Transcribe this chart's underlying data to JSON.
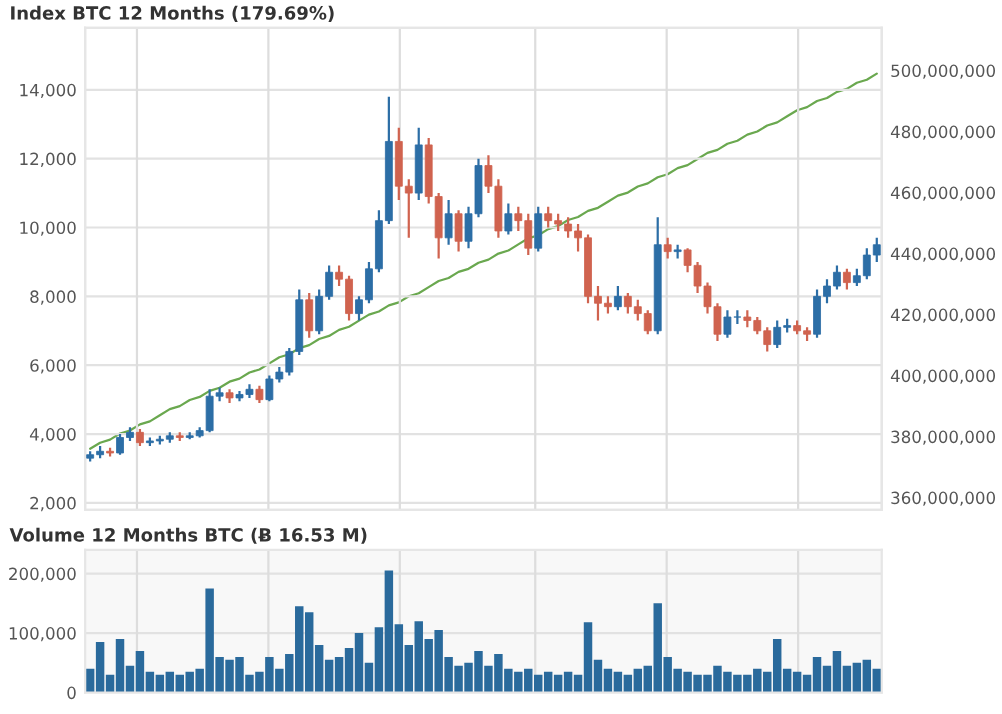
{
  "chart_data": [
    {
      "type": "candlestick",
      "title": "Index BTC 12 Months (179.69%)",
      "tick_labels": "y",
      "grid": true,
      "categories": [
        null,
        null,
        null,
        null,
        null,
        null,
        null,
        null,
        null,
        null,
        null,
        null,
        null,
        null,
        null,
        null,
        null,
        null,
        null,
        null,
        null,
        null,
        null,
        null,
        null,
        null,
        null,
        null,
        null,
        null,
        null,
        null,
        null,
        null,
        null,
        null,
        null,
        null,
        null,
        null,
        null,
        null,
        null,
        null,
        null,
        null,
        null,
        null,
        null,
        null,
        null,
        null,
        null,
        null,
        null,
        null,
        null,
        null,
        null,
        null,
        null,
        null,
        null,
        null,
        null,
        null,
        null,
        null,
        null,
        null,
        null,
        null,
        null,
        null,
        null,
        null,
        null,
        null,
        null,
        null
      ],
      "ylim": [
        1800,
        15800
      ],
      "yticks": [
        {
          "value": 2000,
          "label": "2,000"
        },
        {
          "value": 4000,
          "label": "4,000"
        },
        {
          "value": 6000,
          "label": "6,000"
        },
        {
          "value": 8000,
          "label": "8,000"
        },
        {
          "value": 10000,
          "label": "10,000"
        },
        {
          "value": 12000,
          "label": "12,000"
        },
        {
          "value": 14000,
          "label": "14,000"
        }
      ],
      "y2lim": [
        356000000,
        514000000
      ],
      "y2ticks": [
        {
          "value": 360000000,
          "label": "360,000,000"
        },
        {
          "value": 380000000,
          "label": "380,000,000"
        },
        {
          "value": 400000000,
          "label": "400,000,000"
        },
        {
          "value": 420000000,
          "label": "420,000,000"
        },
        {
          "value": 440000000,
          "label": "440,000,000"
        },
        {
          "value": 460000000,
          "label": "460,000,000"
        },
        {
          "value": 480000000,
          "label": "480,000,000"
        },
        {
          "value": 500000000,
          "label": "500,000,000"
        }
      ],
      "colors": [
        "#2c6ea6",
        "#2c6ea6",
        "#d0634f",
        "#2c6ea6",
        "#2c6ea6",
        "#d0634f",
        "#2c6ea6",
        "#2c6ea6",
        "#2c6ea6",
        "#d0634f",
        "#2c6ea6",
        "#2c6ea6",
        "#2c6ea6",
        "#2c6ea6",
        "#d0634f",
        "#2c6ea6",
        "#2c6ea6",
        "#d0634f",
        "#2c6ea6",
        "#2c6ea6",
        "#2c6ea6",
        "#2c6ea6",
        "#d0634f",
        "#2c6ea6",
        "#2c6ea6",
        "#d0634f",
        "#d0634f",
        "#2c6ea6",
        "#2c6ea6",
        "#2c6ea6",
        "#2c6ea6",
        "#d0634f",
        "#d0634f",
        "#2c6ea6",
        "#d0634f",
        "#d0634f",
        "#2c6ea6",
        "#d0634f",
        "#2c6ea6",
        "#2c6ea6",
        "#d0634f",
        "#d0634f",
        "#2c6ea6",
        "#d0634f",
        "#d0634f",
        "#2c6ea6",
        "#d0634f",
        "#d0634f",
        "#d0634f",
        "#d0634f",
        "#d0634f",
        "#d0634f",
        "#d0634f",
        "#2c6ea6",
        "#d0634f",
        "#d0634f",
        "#d0634f",
        "#2c6ea6",
        "#d0634f",
        "#2c6ea6",
        "#d0634f",
        "#d0634f",
        "#d0634f",
        "#d0634f",
        "#2c6ea6",
        "#2c6ea6",
        "#d0634f",
        "#d0634f",
        "#d0634f",
        "#2c6ea6",
        "#2c6ea6",
        "#d0634f",
        "#d0634f",
        "#2c6ea6",
        "#2c6ea6",
        "#2c6ea6",
        "#d0634f",
        "#2c6ea6",
        "#2c6ea6",
        "#2c6ea6"
      ],
      "ohlc": [
        [
          3300,
          3500,
          3200,
          3400
        ],
        [
          3400,
          3650,
          3300,
          3500
        ],
        [
          3500,
          3600,
          3350,
          3450
        ],
        [
          3450,
          4000,
          3400,
          3900
        ],
        [
          3900,
          4200,
          3800,
          4050
        ],
        [
          4050,
          4150,
          3650,
          3750
        ],
        [
          3750,
          3900,
          3650,
          3800
        ],
        [
          3800,
          3950,
          3700,
          3850
        ],
        [
          3850,
          4050,
          3750,
          3950
        ],
        [
          3950,
          4050,
          3800,
          3900
        ],
        [
          3900,
          4050,
          3850,
          3950
        ],
        [
          3950,
          4200,
          3900,
          4100
        ],
        [
          4100,
          5300,
          4050,
          5100
        ],
        [
          5100,
          5350,
          4950,
          5200
        ],
        [
          5200,
          5300,
          4900,
          5050
        ],
        [
          5050,
          5250,
          4950,
          5150
        ],
        [
          5150,
          5450,
          5050,
          5300
        ],
        [
          5300,
          5400,
          4900,
          5000
        ],
        [
          5000,
          5700,
          4950,
          5600
        ],
        [
          5600,
          5950,
          5500,
          5800
        ],
        [
          5800,
          6500,
          5700,
          6400
        ],
        [
          6400,
          8200,
          6300,
          7900
        ],
        [
          7900,
          8100,
          6800,
          7000
        ],
        [
          7000,
          8200,
          6900,
          8000
        ],
        [
          8000,
          8900,
          7900,
          8700
        ],
        [
          8700,
          8900,
          8300,
          8500
        ],
        [
          8500,
          8600,
          7300,
          7500
        ],
        [
          7500,
          8000,
          7300,
          7900
        ],
        [
          7900,
          9000,
          7800,
          8800
        ],
        [
          8800,
          10500,
          8700,
          10200
        ],
        [
          10200,
          13800,
          10100,
          12500
        ],
        [
          12500,
          12900,
          10800,
          11200
        ],
        [
          11200,
          11400,
          9700,
          11000
        ],
        [
          11000,
          12900,
          10800,
          12400
        ],
        [
          12400,
          12600,
          10700,
          10900
        ],
        [
          10900,
          11000,
          9100,
          9700
        ],
        [
          9700,
          10800,
          9500,
          10400
        ],
        [
          10400,
          10500,
          9300,
          9600
        ],
        [
          9600,
          10600,
          9400,
          10400
        ],
        [
          10400,
          12000,
          10300,
          11800
        ],
        [
          11800,
          12100,
          11000,
          11200
        ],
        [
          11200,
          11400,
          9700,
          9900
        ],
        [
          9900,
          10700,
          9800,
          10400
        ],
        [
          10400,
          10600,
          9900,
          10200
        ],
        [
          10200,
          10400,
          9200,
          9400
        ],
        [
          9400,
          10600,
          9300,
          10400
        ],
        [
          10400,
          10600,
          10000,
          10200
        ],
        [
          10200,
          10400,
          9900,
          10100
        ],
        [
          10100,
          10300,
          9700,
          9900
        ],
        [
          9900,
          10100,
          9300,
          9700
        ],
        [
          9700,
          9800,
          7800,
          8000
        ],
        [
          8000,
          8300,
          7300,
          7800
        ],
        [
          7800,
          8000,
          7500,
          7700
        ],
        [
          7700,
          8300,
          7600,
          8000
        ],
        [
          8000,
          8100,
          7500,
          7700
        ],
        [
          7700,
          7900,
          7300,
          7500
        ],
        [
          7500,
          7600,
          6900,
          7000
        ],
        [
          7000,
          10300,
          6900,
          9500
        ],
        [
          9500,
          9700,
          9100,
          9300
        ],
        [
          9300,
          9500,
          9100,
          9350
        ],
        [
          9350,
          9400,
          8700,
          8900
        ],
        [
          8900,
          9000,
          8100,
          8300
        ],
        [
          8300,
          8400,
          7500,
          7700
        ],
        [
          7700,
          7800,
          6700,
          6900
        ],
        [
          6900,
          7600,
          6800,
          7400
        ],
        [
          7400,
          7600,
          7200,
          7400
        ],
        [
          7400,
          7600,
          7100,
          7300
        ],
        [
          7300,
          7400,
          6900,
          7000
        ],
        [
          7000,
          7100,
          6400,
          6600
        ],
        [
          6600,
          7300,
          6500,
          7100
        ],
        [
          7100,
          7350,
          6950,
          7150
        ],
        [
          7150,
          7300,
          6900,
          7000
        ],
        [
          7000,
          7100,
          6700,
          6900
        ],
        [
          6900,
          8200,
          6800,
          8000
        ],
        [
          8000,
          8500,
          7800,
          8300
        ],
        [
          8300,
          8900,
          8200,
          8700
        ],
        [
          8700,
          8800,
          8200,
          8400
        ],
        [
          8400,
          8800,
          8300,
          8600
        ],
        [
          8600,
          9400,
          8500,
          9200
        ],
        [
          9200,
          9700,
          9000,
          9500
        ]
      ],
      "series": [
        {
          "type": "line",
          "axis": "y2",
          "color": "#6aa84f",
          "values": [
            376000000,
            378000000,
            379000000,
            381000000,
            382000000,
            384000000,
            385000000,
            387000000,
            389000000,
            390000000,
            392000000,
            393000000,
            395000000,
            396000000,
            398000000,
            399000000,
            401000000,
            402000000,
            404000000,
            406000000,
            407000000,
            409000000,
            410000000,
            412000000,
            413000000,
            415000000,
            416000000,
            418000000,
            420000000,
            421000000,
            423000000,
            424000000,
            426000000,
            427000000,
            429000000,
            431000000,
            432000000,
            434000000,
            435000000,
            437000000,
            438000000,
            440000000,
            441000000,
            443000000,
            445000000,
            446000000,
            448000000,
            449000000,
            451000000,
            452000000,
            454000000,
            455000000,
            457000000,
            459000000,
            460000000,
            462000000,
            463000000,
            465000000,
            466000000,
            468000000,
            469000000,
            471000000,
            473000000,
            474000000,
            476000000,
            477000000,
            479000000,
            480000000,
            482000000,
            483000000,
            485000000,
            487000000,
            488000000,
            490000000,
            491000000,
            493000000,
            494000000,
            496000000,
            497000000,
            499000000
          ]
        }
      ]
    },
    {
      "type": "bar",
      "title": "Volume 12 Months BTC (Ƀ 16.53 M)",
      "tick_labels": "y",
      "grid": true,
      "categories": [
        null,
        null,
        null,
        null,
        null,
        null,
        null,
        null,
        null,
        null,
        null,
        null,
        null,
        null,
        null,
        null,
        null,
        null,
        null,
        null,
        null,
        null,
        null,
        null,
        null,
        null,
        null,
        null,
        null,
        null,
        null,
        null,
        null,
        null,
        null,
        null,
        null,
        null,
        null,
        null,
        null,
        null,
        null,
        null,
        null,
        null,
        null,
        null,
        null,
        null,
        null,
        null,
        null,
        null,
        null,
        null,
        null,
        null,
        null,
        null,
        null,
        null,
        null,
        null,
        null,
        null,
        null,
        null,
        null,
        null,
        null,
        null,
        null,
        null,
        null,
        null,
        null,
        null,
        null,
        null
      ],
      "ylim": [
        0,
        240000
      ],
      "yticks": [
        {
          "value": 0,
          "label": "0"
        },
        {
          "value": 100000,
          "label": "100,000"
        },
        {
          "value": 200000,
          "label": "200,000"
        }
      ],
      "series": [
        {
          "color": "#2a6a9c",
          "values": [
            40000,
            85000,
            30000,
            90000,
            45000,
            70000,
            35000,
            30000,
            35000,
            30000,
            35000,
            40000,
            175000,
            60000,
            55000,
            60000,
            30000,
            35000,
            60000,
            40000,
            65000,
            145000,
            135000,
            80000,
            55000,
            60000,
            75000,
            100000,
            50000,
            110000,
            205000,
            115000,
            80000,
            120000,
            90000,
            105000,
            60000,
            45000,
            50000,
            70000,
            45000,
            65000,
            40000,
            35000,
            40000,
            30000,
            35000,
            30000,
            35000,
            30000,
            118000,
            55000,
            40000,
            35000,
            30000,
            40000,
            45000,
            150000,
            60000,
            40000,
            35000,
            30000,
            30000,
            45000,
            35000,
            30000,
            30000,
            40000,
            35000,
            90000,
            40000,
            35000,
            30000,
            60000,
            45000,
            70000,
            45000,
            50000,
            55000,
            40000
          ]
        }
      ]
    }
  ]
}
